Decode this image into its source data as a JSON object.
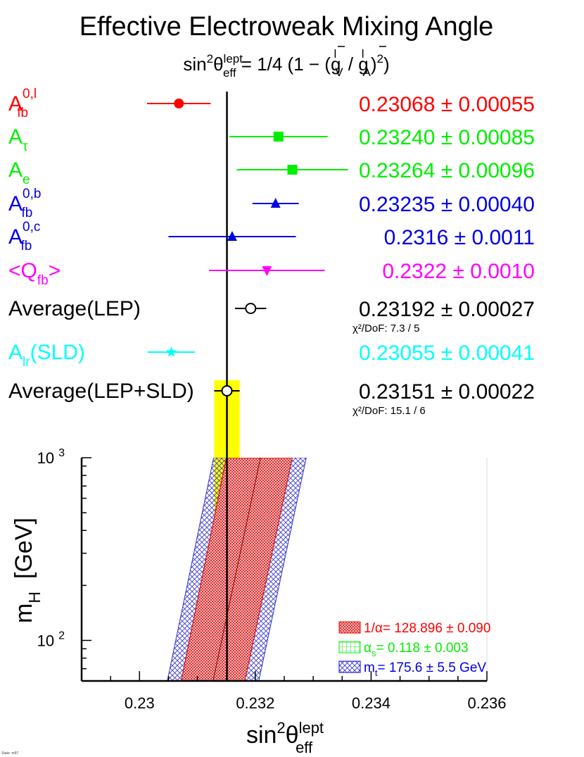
{
  "title": "Effective Electroweak Mixing Angle",
  "formula": {
    "lhs_base": "sin",
    "lhs_sup": "2",
    "lhs_theta": "θ",
    "lhs_sub": "eff",
    "lhs_theta_sup": "lept",
    "rhs_start": " = 1/4 (1 − (",
    "g_v_base": "g",
    "g_v_sup": "l",
    "g_v_sub": "V",
    "slash": " / ",
    "g_a_base": "g",
    "g_a_sup": "l",
    "g_a_sub": "A",
    "rhs_close": ")",
    "rhs_sup": "2",
    "rhs_end": ")"
  },
  "colors": {
    "red": "#ff0000",
    "green": "#00ee00",
    "blue": "#0000e0",
    "magenta": "#ff00ff",
    "black": "#000000",
    "cyan": "#00ffff",
    "yellow": "#ffff00"
  },
  "chart_data": {
    "type": "scatter",
    "x_axis": {
      "label_base": "sin",
      "label_sup": "2",
      "label_theta": "θ",
      "label_sub": "eff",
      "label_theta_sup": "lept",
      "range": [
        0.229,
        0.236
      ],
      "ticks": [
        "0.23",
        "0.232",
        "0.234",
        "0.236"
      ]
    },
    "measurements": [
      {
        "base": "A",
        "sub": "fb",
        "sup": "0,l",
        "prefix": "",
        "suffix": "",
        "value": 0.23068,
        "error": 0.00055,
        "value_text": "0.23068",
        "error_text": "0.00055",
        "color": "#ff0000",
        "marker": "circle",
        "chi2": ""
      },
      {
        "base": "A",
        "sub": "τ",
        "sup": "",
        "prefix": "",
        "suffix": "",
        "value": 0.2324,
        "error": 0.00085,
        "value_text": "0.23240",
        "error_text": "0.00085",
        "color": "#00ee00",
        "marker": "square",
        "chi2": ""
      },
      {
        "base": "A",
        "sub": "e",
        "sup": "",
        "prefix": "",
        "suffix": "",
        "value": 0.23264,
        "error": 0.00096,
        "value_text": "0.23264",
        "error_text": "0.00096",
        "color": "#00ee00",
        "marker": "square",
        "chi2": ""
      },
      {
        "base": "A",
        "sub": "fb",
        "sup": "0,b",
        "prefix": "",
        "suffix": "",
        "value": 0.23235,
        "error": 0.0004,
        "value_text": "0.23235",
        "error_text": "0.00040",
        "color": "#0000e0",
        "marker": "triangle",
        "chi2": ""
      },
      {
        "base": "A",
        "sub": "fb",
        "sup": "0,c",
        "prefix": "",
        "suffix": "",
        "value": 0.2316,
        "error": 0.0011,
        "value_text": "0.2316",
        "error_text": "0.0011",
        "color": "#0000e0",
        "marker": "triangle",
        "chi2": ""
      },
      {
        "base": "Q",
        "sub": "fb",
        "sup": "",
        "prefix": "<",
        "suffix": ">",
        "value": 0.2322,
        "error": 0.001,
        "value_text": "0.2322",
        "error_text": "0.0010",
        "color": "#ff00ff",
        "marker": "triangle-down",
        "chi2": ""
      },
      {
        "base": "Average(LEP)",
        "sub": "",
        "sup": "",
        "prefix": "",
        "suffix": "",
        "value": 0.23192,
        "error": 0.00027,
        "value_text": "0.23192",
        "error_text": "0.00027",
        "color": "#000000",
        "marker": "open-circle",
        "chi2": "χ²/DoF: 7.3 / 5"
      },
      {
        "base": "A",
        "sub": "lr",
        "sup": "",
        "prefix": "",
        "suffix": "(SLD)",
        "value": 0.23055,
        "error": 0.00041,
        "value_text": "0.23055",
        "error_text": "0.00041",
        "color": "#00ffff",
        "marker": "star",
        "chi2": ""
      },
      {
        "base": "Average(LEP+SLD)",
        "sub": "",
        "sup": "",
        "prefix": "",
        "suffix": "",
        "value": 0.23151,
        "error": 0.00022,
        "value_text": "0.23151",
        "error_text": "0.00022",
        "color": "#000000",
        "marker": "open-circle",
        "chi2": "χ²/DoF: 15.1 / 6"
      }
    ],
    "pm_symbol": "±",
    "average_band": {
      "center": 0.23151,
      "error": 0.00022,
      "color": "#ffff00"
    },
    "mh_plot": {
      "y_label_base": "m",
      "y_label_sub": "H",
      "y_label_unit": "[GeV]",
      "y_scale": "log",
      "y_range": [
        60,
        1000
      ],
      "y_ticks": [
        {
          "value": 100,
          "base": "10",
          "exp": "2"
        },
        {
          "value": 1000,
          "base": "10",
          "exp": "3"
        }
      ],
      "bands": [
        {
          "name": "mt",
          "color": "#3333cc",
          "points": [
            [
              0.23048,
              60
            ],
            [
              0.23206,
              60
            ],
            [
              0.23288,
              1000
            ],
            [
              0.23128,
              1000
            ]
          ]
        },
        {
          "name": "alpha_s",
          "color": "#00cc00",
          "points": [
            [
              0.23094,
              60
            ],
            [
              0.2316,
              60
            ],
            [
              0.23242,
              1000
            ],
            [
              0.23174,
              1000
            ]
          ]
        },
        {
          "name": "alpha",
          "color": "#cc0000",
          "points": [
            [
              0.23072,
              60
            ],
            [
              0.23182,
              60
            ],
            [
              0.23264,
              1000
            ],
            [
              0.2315,
              1000
            ]
          ]
        }
      ],
      "central_curve": [
        [
          0.23127,
          60
        ],
        [
          0.23209,
          1000
        ]
      ],
      "legend": [
        {
          "label": "1/α= 128.896 ± 0.090",
          "color": "#ff0000",
          "pattern": "alpha"
        },
        {
          "label_base": "α",
          "label_sub": "s",
          "label_rest": "= 0.118 ± 0.003",
          "color": "#00ee00",
          "pattern": "alpha_s"
        },
        {
          "label_base": "m",
          "label_sub": "t",
          "label_rest": "= 175.6 ± 5.5 GeV",
          "color": "#0000e0",
          "pattern": "mt"
        }
      ]
    }
  },
  "footer_note": "State: m97"
}
